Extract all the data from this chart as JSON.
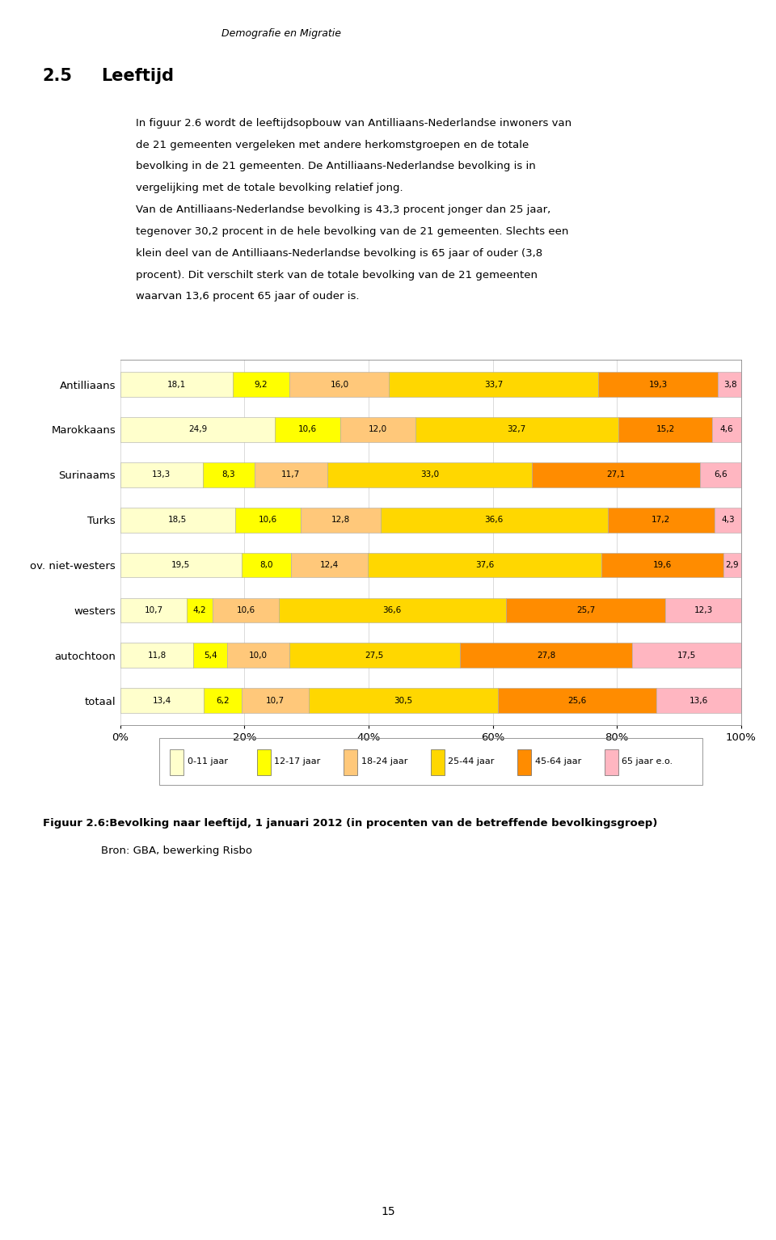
{
  "header": "Demografie en Migratie",
  "section_num": "2.5",
  "section_title": "Leeftijd",
  "para1_lines": [
    "In figuur 2.6 wordt de leeftijdsopbouw van Antilliaans-Nederlandse inwoners van",
    "de 21 gemeenten vergeleken met andere herkomstgroepen en de totale",
    "bevolking in de 21 gemeenten. De Antilliaans-Nederlandse bevolking is in",
    "vergelijking met de totale bevolking relatief jong."
  ],
  "para2_lines": [
    "Van de Antilliaans-Nederlandse bevolking is 43,3 procent jonger dan 25 jaar,",
    "tegenover 30,2 procent in de hele bevolking van de 21 gemeenten. Slechts een",
    "klein deel van de Antilliaans-Nederlandse bevolking is 65 jaar of ouder (3,8",
    "procent). Dit verschilt sterk van de totale bevolking van de 21 gemeenten",
    "waarvan 13,6 procent 65 jaar of ouder is."
  ],
  "fig_caption_bold": "Figuur 2.6:",
  "fig_caption_rest": "  Bevolking naar leeftijd, 1 januari 2012 (in procenten van de betreffende bevolkingsgroep)",
  "fig_source": "Bron: GBA, bewerking Risbo",
  "categories": [
    "Antilliaans",
    "Marokkaans",
    "Surinaams",
    "Turks",
    "ov. niet-westers",
    "westers",
    "autochtoon",
    "totaal"
  ],
  "series": [
    "0-11 jaar",
    "12-17 jaar",
    "18-24 jaar",
    "25-44 jaar",
    "45-64 jaar",
    "65 jaar e.o."
  ],
  "data": {
    "0-11 jaar": [
      18.1,
      24.9,
      13.3,
      18.5,
      19.5,
      10.7,
      11.8,
      13.4
    ],
    "12-17 jaar": [
      9.2,
      10.6,
      8.3,
      10.6,
      8.0,
      4.2,
      5.4,
      6.2
    ],
    "18-24 jaar": [
      16.0,
      12.0,
      11.7,
      12.8,
      12.4,
      10.6,
      10.0,
      10.7
    ],
    "25-44 jaar": [
      33.7,
      32.7,
      33.0,
      36.6,
      37.6,
      36.6,
      27.5,
      30.5
    ],
    "45-64 jaar": [
      19.3,
      15.2,
      27.1,
      17.2,
      19.6,
      25.7,
      27.8,
      25.6
    ],
    "65 jaar e.o.": [
      3.8,
      4.6,
      6.6,
      4.3,
      2.9,
      12.3,
      17.5,
      13.6
    ]
  },
  "colors": {
    "0-11 jaar": "#FFFFCC",
    "12-17 jaar": "#FFFF00",
    "18-24 jaar": "#FFC87A",
    "25-44 jaar": "#FFD700",
    "45-64 jaar": "#FF8C00",
    "65 jaar e.o.": "#FFB6C1"
  },
  "page_num": "15"
}
